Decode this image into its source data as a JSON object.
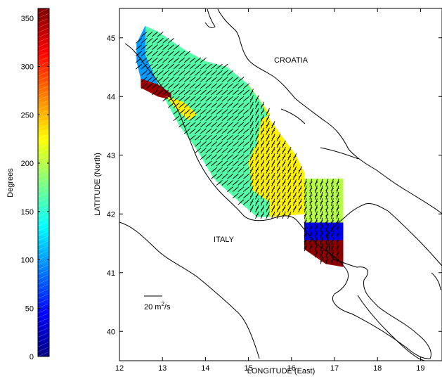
{
  "chart_data": {
    "type": "heatmap",
    "title": "",
    "map_labels": {
      "croatia": "CROATIA",
      "italy": "ITALY"
    },
    "xlabel": "LONGITUDE (East)",
    "ylabel": "LATITUDE (North)",
    "xlim": [
      12,
      19.5
    ],
    "ylim": [
      39.5,
      45.5
    ],
    "xticks": [
      12,
      13,
      14,
      15,
      16,
      17,
      18,
      19
    ],
    "yticks": [
      40,
      41,
      42,
      43,
      44,
      45
    ],
    "scale_arrow_label": {
      "prefix": "20 m",
      "sup": "2",
      "suffix": "/s"
    },
    "colorbar": {
      "label": "Degrees",
      "min": 0,
      "max": 360,
      "ticks": [
        0,
        50,
        100,
        150,
        200,
        250,
        300,
        350
      ],
      "levels": 72
    },
    "direction_field_degrees": [
      {
        "region": "northern coastal band (lon 12.4–12.7, lat 44.3–44.7)",
        "value": 100
      },
      {
        "region": "Rimini/Ancona coast strip (lat 44.0–44.3)",
        "value": 350
      },
      {
        "region": "central basin",
        "value": 165
      },
      {
        "region": "mid-basin transition (lon 15.0–16.0)",
        "value": 230
      },
      {
        "region": "Gargano offshore (lon 16.2–17.2, lat 41.9–42.6)",
        "value": 200
      },
      {
        "region": "Gargano coastal blue band (lat 41.5–41.8)",
        "value": 40
      },
      {
        "region": "Gargano coastal red band (lat 41.1–41.5)",
        "value": 355
      }
    ]
  }
}
